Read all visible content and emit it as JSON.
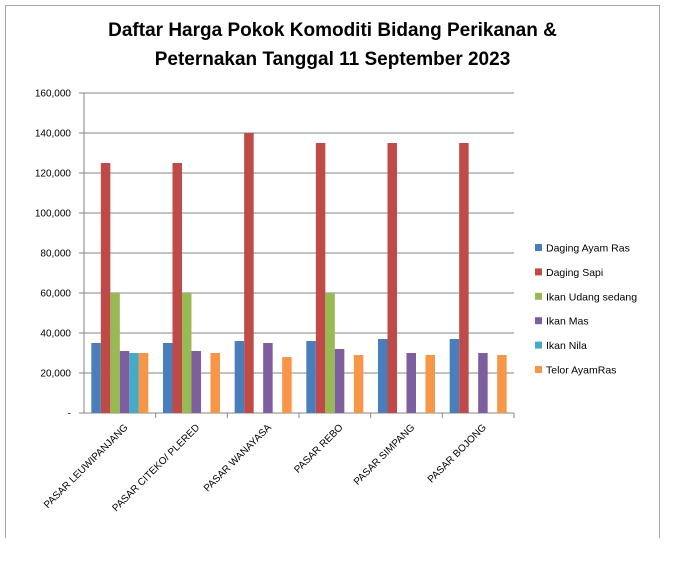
{
  "chart_data": {
    "type": "bar",
    "title": "Daftar Harga Pokok Komoditi Bidang Perikanan & Peternakan Tanggal 11 September 2023",
    "title_lines": [
      "Daftar Harga Pokok Komoditi Bidang Perikanan &",
      "Peternakan Tanggal 11 September 2023"
    ],
    "categories": [
      "PASAR LEUWIPANJANG",
      "PASAR CITEKO/ PLERED",
      "PASAR WANAYASA",
      "PASAR REBO",
      "PASAR SIMPANG",
      "PASAR BOJONG"
    ],
    "series": [
      {
        "name": "Daging Ayam Ras",
        "color": "#4a7ebb",
        "values": [
          35000,
          35000,
          36000,
          36000,
          37000,
          37000
        ]
      },
      {
        "name": "Daging Sapi",
        "color": "#be4b48",
        "values": [
          125000,
          125000,
          140000,
          135000,
          135000,
          135000
        ]
      },
      {
        "name": "Ikan Udang sedang",
        "color": "#98b954",
        "values": [
          60000,
          60000,
          0,
          60000,
          0,
          0
        ]
      },
      {
        "name": "Ikan Mas",
        "color": "#7d5fa0",
        "values": [
          31000,
          31000,
          35000,
          32000,
          30000,
          30000
        ]
      },
      {
        "name": "Ikan Nila",
        "color": "#46aac5",
        "values": [
          30000,
          0,
          0,
          0,
          0,
          0
        ]
      },
      {
        "name": "Telor AyamRas",
        "color": "#f79646",
        "values": [
          30000,
          30000,
          28000,
          29000,
          29000,
          29000
        ]
      }
    ],
    "yticks": [
      "-",
      "20,000",
      "40,000",
      "60,000",
      "80,000",
      "100,000",
      "120,000",
      "140,000",
      "160,000"
    ],
    "ylim": [
      0,
      160000
    ],
    "xlabel": "",
    "ylabel": "",
    "grid": true,
    "legend_position": "right"
  }
}
